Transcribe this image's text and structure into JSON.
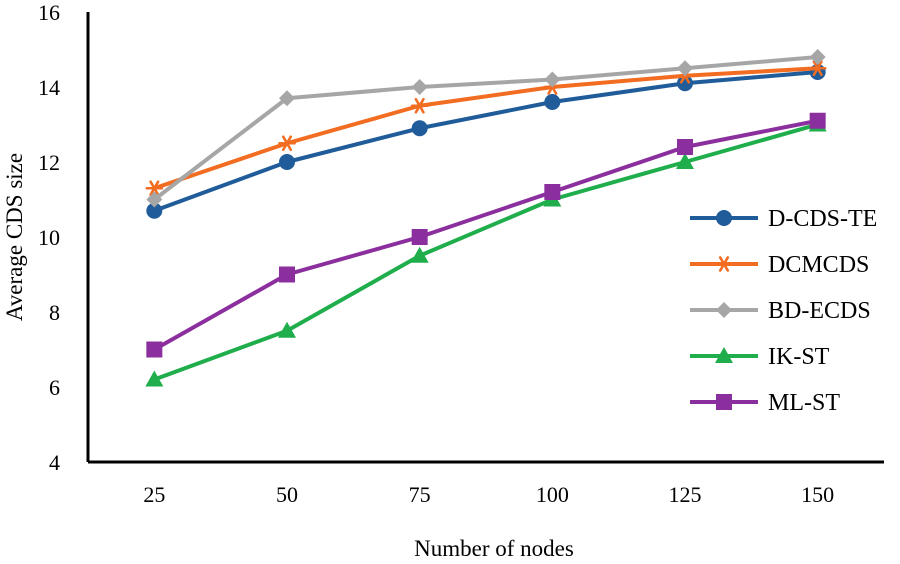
{
  "chart_data": {
    "type": "line",
    "title": "",
    "xlabel": "Number of nodes",
    "ylabel": "Average CDS size",
    "categories": [
      "25",
      "50",
      "75",
      "100",
      "125",
      "150"
    ],
    "ylim": [
      4,
      16
    ],
    "yticks": [
      "4",
      "6",
      "8",
      "10",
      "12",
      "14",
      "16"
    ],
    "grid": false,
    "legend_position": "right",
    "series": [
      {
        "name": "D-CDS-TE",
        "color": "#1f5c99",
        "marker": "circle",
        "values": [
          10.7,
          12.0,
          12.9,
          13.6,
          14.1,
          14.4
        ]
      },
      {
        "name": "DCMCDS",
        "color": "#f26d21",
        "marker": "asterisk",
        "values": [
          11.3,
          12.5,
          13.5,
          14.0,
          14.3,
          14.5
        ]
      },
      {
        "name": "BD-ECDS",
        "color": "#a6a6a6",
        "marker": "diamond",
        "values": [
          11.0,
          13.7,
          14.0,
          14.2,
          14.5,
          14.8
        ]
      },
      {
        "name": "IK-ST",
        "color": "#1fae4b",
        "marker": "triangle",
        "values": [
          6.2,
          7.5,
          9.5,
          11.0,
          12.0,
          13.0
        ]
      },
      {
        "name": "ML-ST",
        "color": "#8c2f9e",
        "marker": "square",
        "values": [
          7.0,
          9.0,
          10.0,
          11.2,
          12.4,
          13.1
        ]
      }
    ]
  }
}
